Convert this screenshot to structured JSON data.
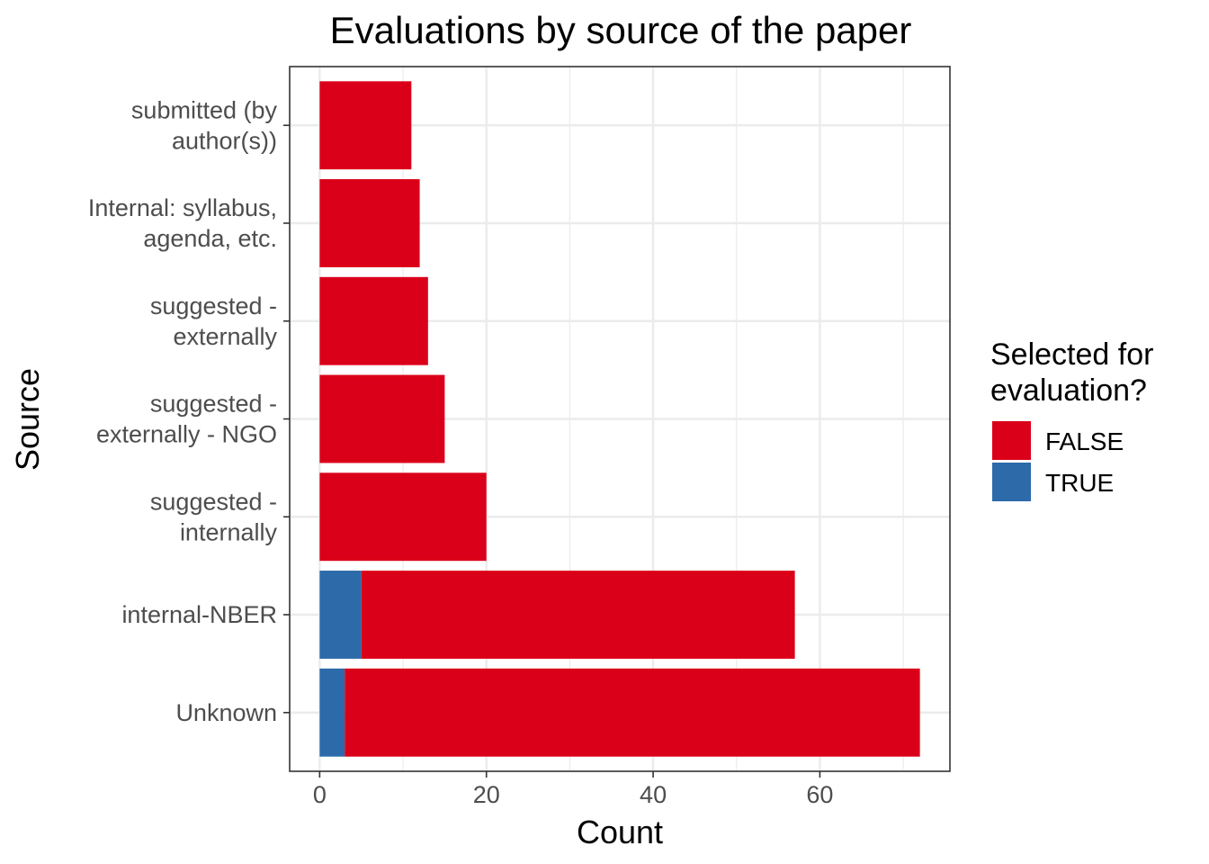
{
  "chart_data": {
    "type": "bar",
    "orientation": "horizontal",
    "stacked": true,
    "title": "Evaluations by source of the paper",
    "xlabel": "Count",
    "ylabel": "Source",
    "xlim": [
      -3.6,
      75.6
    ],
    "x_ticks": [
      0,
      20,
      40,
      60
    ],
    "grid": true,
    "legend_position": "right",
    "legend_title": [
      "Selected for",
      "evaluation?"
    ],
    "categories": [
      [
        "Unknown"
      ],
      [
        "internal-NBER"
      ],
      [
        "suggested -",
        "internally"
      ],
      [
        "suggested -",
        "externally - NGO"
      ],
      [
        "suggested -",
        "externally"
      ],
      [
        "Internal: syllabus,",
        "agenda, etc."
      ],
      [
        "submitted (by",
        "author(s))"
      ]
    ],
    "series": [
      {
        "name": "TRUE",
        "color": "#2c6aa9",
        "values": [
          3,
          5,
          0,
          0,
          0,
          0,
          0
        ]
      },
      {
        "name": "FALSE",
        "color": "#db0019",
        "values": [
          69,
          52,
          20,
          15,
          13,
          12,
          11
        ]
      }
    ],
    "legend_order": [
      "FALSE",
      "TRUE"
    ]
  }
}
